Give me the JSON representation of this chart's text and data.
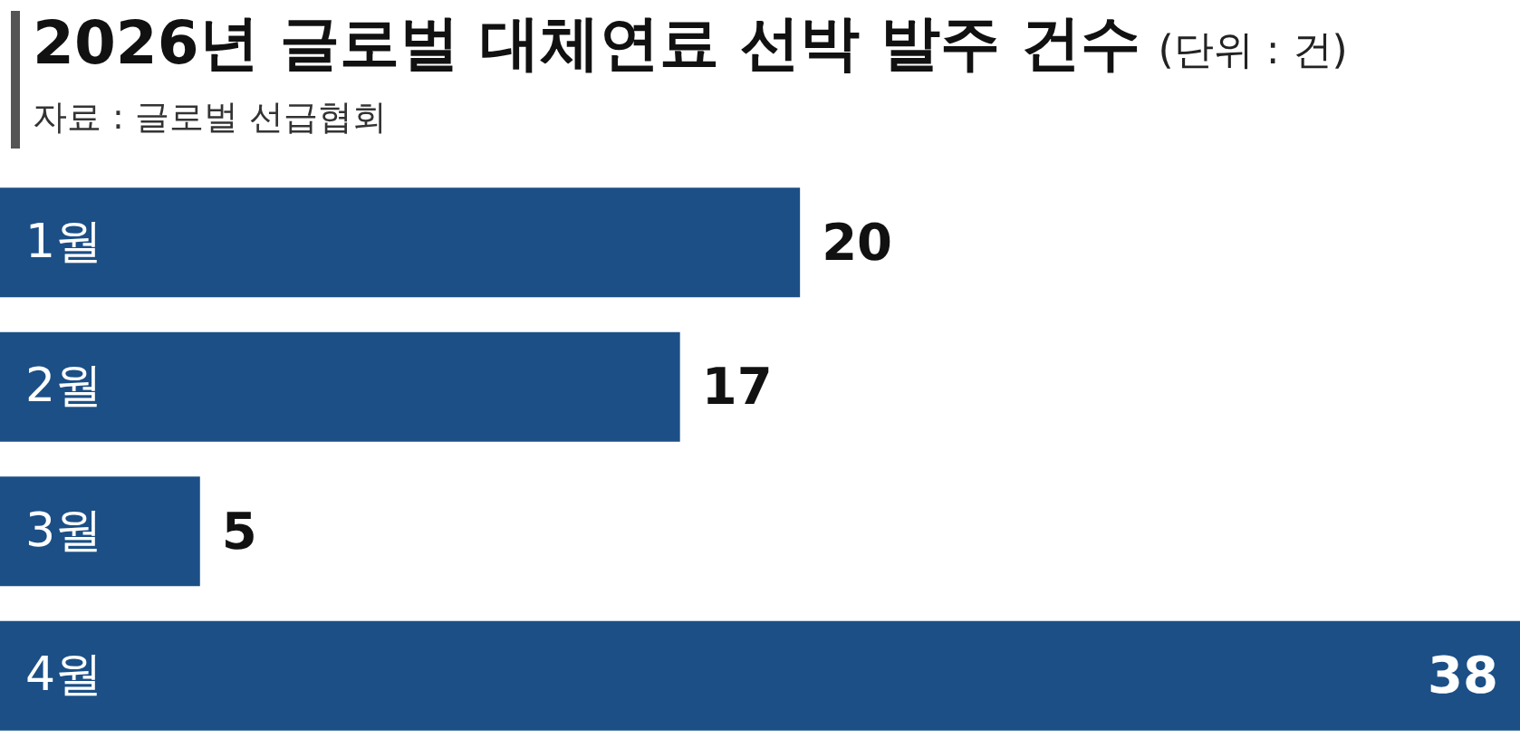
{
  "chart_data": {
    "type": "bar",
    "orientation": "horizontal",
    "title": "2026년 글로벌 대체연료 선박 발주 건수",
    "subtitle": "(단위 : 건)",
    "annotations": [
      "자료 : 글로벌 선급협회"
    ],
    "categories": [
      "1월",
      "2월",
      "3월",
      "4월"
    ],
    "values": [
      20,
      17,
      5,
      38
    ],
    "color": "#1b4f86",
    "data_labels": true,
    "grid": false
  }
}
